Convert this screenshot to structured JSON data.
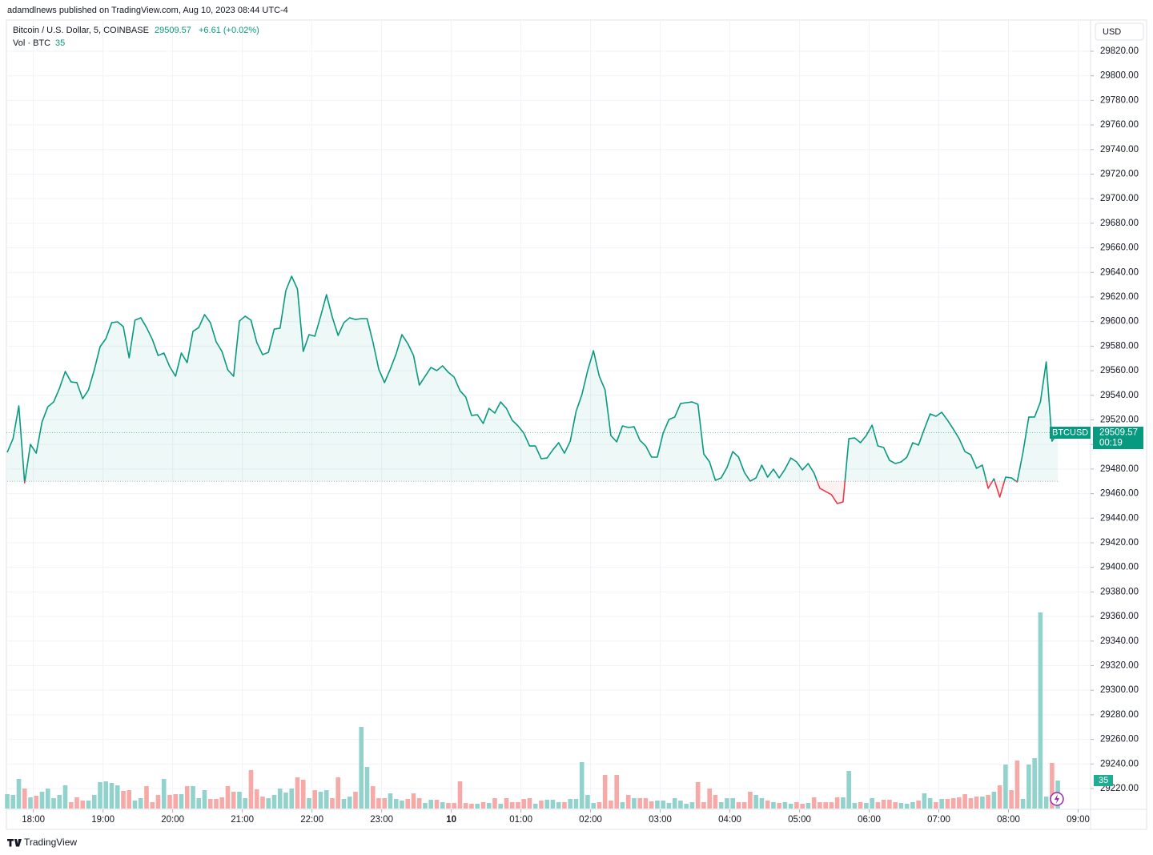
{
  "chart_data": {
    "type": "line",
    "publisher": "adamdlnews published on TradingView.com, Aug 10, 2023 08:44 UTC-4",
    "title": "Bitcoin / U.S. Dollar, 5, COINBASE",
    "change": "+6.61 (+0.02%)",
    "volume_title": "Vol · BTC",
    "currency": "USD",
    "countdown": "00:19",
    "brand": "TradingView",
    "baseline": 29470,
    "grid": true,
    "xlim": [
      -0.5,
      186.5
    ],
    "ylim": [
      29203.7,
      29845.4
    ],
    "vol_ylim": [
      0,
      985
    ],
    "xticks": [
      {
        "value": 4.5,
        "label": "18:00"
      },
      {
        "value": 16.5,
        "label": "19:00"
      },
      {
        "value": 28.5,
        "label": "20:00"
      },
      {
        "value": 40.5,
        "label": "21:00"
      },
      {
        "value": 52.5,
        "label": "22:00"
      },
      {
        "value": 64.5,
        "label": "23:00"
      },
      {
        "value": 76.5,
        "label": "10"
      },
      {
        "value": 88.5,
        "label": "01:00"
      },
      {
        "value": 100.5,
        "label": "02:00"
      },
      {
        "value": 112.5,
        "label": "03:00"
      },
      {
        "value": 124.5,
        "label": "04:00"
      },
      {
        "value": 136.5,
        "label": "05:00"
      },
      {
        "value": 148.5,
        "label": "06:00"
      },
      {
        "value": 160.5,
        "label": "07:00"
      },
      {
        "value": 172.5,
        "label": "08:00"
      },
      {
        "value": 184.5,
        "label": "09:00"
      }
    ],
    "yticks": [
      {
        "value": 29220,
        "label": "29220.00"
      },
      {
        "value": 29240,
        "label": "29240.00"
      },
      {
        "value": 29260,
        "label": "29260.00"
      },
      {
        "value": 29280,
        "label": "29280.00"
      },
      {
        "value": 29300,
        "label": "29300.00"
      },
      {
        "value": 29320,
        "label": "29320.00"
      },
      {
        "value": 29340,
        "label": "29340.00"
      },
      {
        "value": 29360,
        "label": "29360.00"
      },
      {
        "value": 29380,
        "label": "29380.00"
      },
      {
        "value": 29400,
        "label": "29400.00"
      },
      {
        "value": 29420,
        "label": "29420.00"
      },
      {
        "value": 29440,
        "label": "29440.00"
      },
      {
        "value": 29460,
        "label": "29460.00"
      },
      {
        "value": 29480,
        "label": "29480.00"
      },
      {
        "value": 29500,
        "label": "29500.00"
      },
      {
        "value": 29520,
        "label": "29520.00"
      },
      {
        "value": 29540,
        "label": "29540.00"
      },
      {
        "value": 29560,
        "label": "29560.00"
      },
      {
        "value": 29580,
        "label": "29580.00"
      },
      {
        "value": 29600,
        "label": "29600.00"
      },
      {
        "value": 29620,
        "label": "29620.00"
      },
      {
        "value": 29640,
        "label": "29640.00"
      },
      {
        "value": 29660,
        "label": "29660.00"
      },
      {
        "value": 29680,
        "label": "29680.00"
      },
      {
        "value": 29700,
        "label": "29700.00"
      },
      {
        "value": 29720,
        "label": "29720.00"
      },
      {
        "value": 29740,
        "label": "29740.00"
      },
      {
        "value": 29760,
        "label": "29760.00"
      },
      {
        "value": 29780,
        "label": "29780.00"
      },
      {
        "value": 29800,
        "label": "29800.00"
      },
      {
        "value": 29820,
        "label": "29820.00"
      }
    ],
    "series": [
      {
        "name": "BTCUSD",
        "color": "#089981",
        "down_color": "#f23645",
        "values": [
          29493.6,
          29504.7,
          29531.4,
          29468.8,
          29500.1,
          29492.9,
          29518.4,
          29530.7,
          29534.6,
          29545.7,
          29559.4,
          29550.9,
          29550.3,
          29537.2,
          29544.4,
          29560.7,
          29579.6,
          29586.1,
          29599.1,
          29599.8,
          29595.9,
          29570.5,
          29601.1,
          29603.1,
          29595.2,
          29585.5,
          29572.4,
          29574.4,
          29563.3,
          29555.5,
          29574.4,
          29566.6,
          29592.0,
          29595.2,
          29605.7,
          29599.1,
          29583.5,
          29575.7,
          29560.7,
          29555.5,
          29600.4,
          29604.4,
          29601.1,
          29582.9,
          29573.1,
          29575.0,
          29593.9,
          29594.6,
          29625.2,
          29636.9,
          29626.5,
          29575.7,
          29589.4,
          29588.1,
          29604.4,
          29621.9,
          29603.7,
          29588.7,
          29599.1,
          29603.1,
          29601.7,
          29602.4,
          29602.4,
          29583.5,
          29561.4,
          29550.3,
          29561.4,
          29573.7,
          29589.4,
          29582.2,
          29572.4,
          29548.3,
          29555.5,
          29562.7,
          29560.1,
          29564.0,
          29558.7,
          29554.8,
          29543.8,
          29538.6,
          29523.6,
          29524.2,
          29517.1,
          29529.4,
          29525.5,
          29534.6,
          29529.4,
          29519.7,
          29515.1,
          29509.2,
          29498.8,
          29498.8,
          29488.4,
          29489.0,
          29495.6,
          29501.4,
          29492.9,
          29502.7,
          29526.8,
          29540.5,
          29560.1,
          29576.3,
          29555.5,
          29544.4,
          29507.3,
          29502.1,
          29515.1,
          29513.8,
          29514.4,
          29503.4,
          29498.8,
          29489.7,
          29489.7,
          29509.2,
          29520.3,
          29522.3,
          29533.3,
          29534.0,
          29534.6,
          29532.7,
          29492.3,
          29485.8,
          29470.8,
          29472.8,
          29481.2,
          29494.2,
          29489.7,
          29477.3,
          29470.1,
          29472.8,
          29483.2,
          29473.4,
          29479.9,
          29472.8,
          29479.9,
          29489.0,
          29485.8,
          29479.3,
          29484.5,
          29476.7,
          29464.3,
          29461.7,
          29459.1,
          29451.9,
          29453.2,
          29504.7,
          29505.3,
          29501.4,
          29507.3,
          29515.7,
          29498.8,
          29497.5,
          29487.1,
          29484.5,
          29485.8,
          29489.7,
          29501.4,
          29499.5,
          29512.5,
          29524.9,
          29522.9,
          29526.2,
          29519.7,
          29512.5,
          29504.7,
          29494.2,
          29491.6,
          29480.6,
          29483.2,
          29464.3,
          29472.1,
          29457.1,
          29473.4,
          29472.8,
          29469.5,
          29493.6,
          29522.3,
          29522.3,
          29534.6,
          29567.2,
          29502.7,
          29509.57
        ]
      }
    ],
    "volume": {
      "up_color": "#92d2cc",
      "down_color": "#f7a9a7",
      "values": [
        18,
        17,
        37,
        25,
        14,
        16,
        21,
        25,
        13,
        17,
        29,
        8,
        14,
        10,
        10,
        17,
        33,
        34,
        32,
        29,
        22,
        23,
        10,
        13,
        28,
        8,
        17,
        37,
        17,
        18,
        18,
        28,
        28,
        13,
        23,
        12,
        12,
        14,
        28,
        21,
        21,
        13,
        48,
        24,
        15,
        13,
        17,
        25,
        20,
        25,
        39,
        36,
        13,
        23,
        21,
        23,
        13,
        39,
        12,
        15,
        21,
        102,
        52,
        28,
        13,
        13,
        19,
        12,
        10,
        12,
        19,
        13,
        7,
        11,
        11,
        8,
        7,
        7,
        34,
        7,
        6,
        6,
        8,
        7,
        13,
        6,
        13,
        8,
        8,
        12,
        13,
        6,
        10,
        11,
        11,
        8,
        8,
        12,
        12,
        58,
        17,
        7,
        8,
        42,
        10,
        42,
        8,
        17,
        13,
        13,
        13,
        9,
        10,
        10,
        7,
        13,
        10,
        6,
        8,
        33,
        8,
        25,
        17,
        8,
        13,
        13,
        8,
        8,
        21,
        17,
        13,
        10,
        8,
        7,
        8,
        6,
        8,
        6,
        7,
        14,
        8,
        8,
        8,
        14,
        14,
        47,
        7,
        8,
        7,
        13,
        8,
        11,
        11,
        8,
        7,
        6,
        8,
        10,
        19,
        13,
        8,
        12,
        12,
        13,
        14,
        18,
        13,
        15,
        15,
        17,
        21,
        29,
        55,
        23,
        60,
        12,
        55,
        63,
        245,
        15,
        57,
        35
      ]
    }
  }
}
